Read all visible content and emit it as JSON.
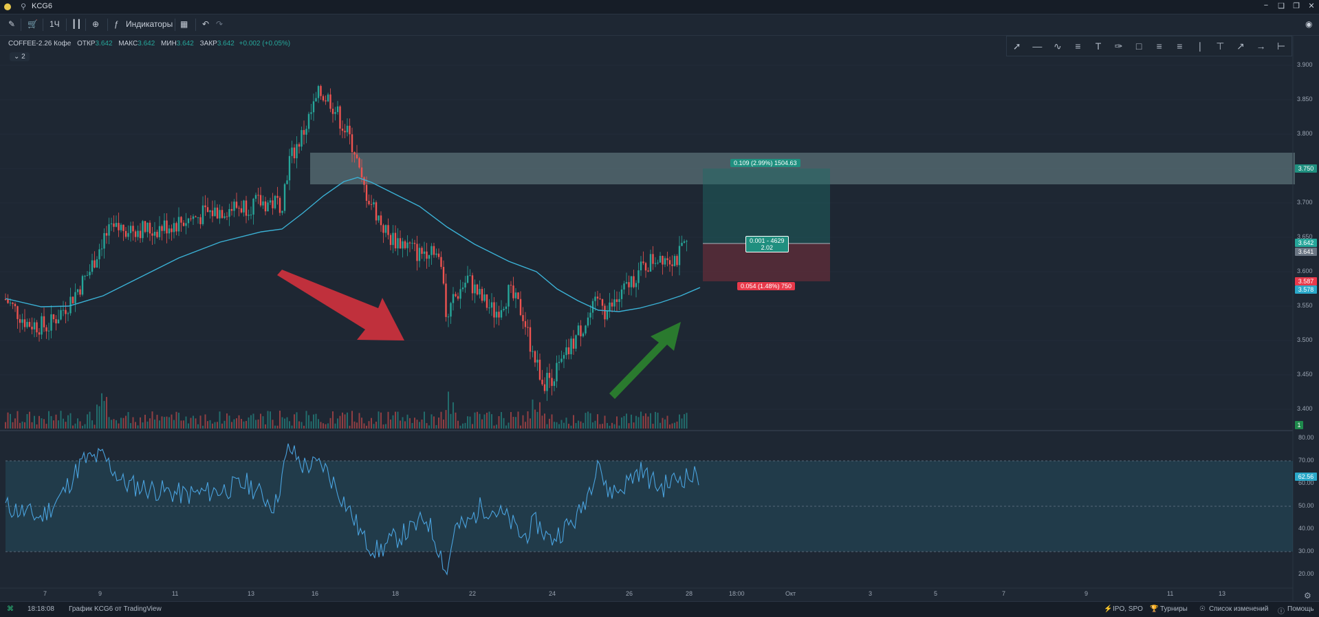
{
  "window": {
    "symbol": "KCG6",
    "buttons": [
      "−",
      "❑",
      "❐",
      "✕"
    ]
  },
  "toolbar": {
    "interval": "1Ч",
    "indicators_label": "Индикаторы"
  },
  "legend": {
    "name": "COFFEE-2.26 Кофе",
    "open_label": "ОТКР",
    "open": "3.642",
    "high_label": "МАКС",
    "high": "3.642",
    "low_label": "МИН",
    "low": "3.642",
    "close_label": "ЗАКР",
    "close": "3.642",
    "change": "+0.002 (+0.05%)",
    "collapsed_count": "2"
  },
  "position_tool": {
    "target_label": "0.109 (2.99%) 1504.63",
    "entry_label_1": "0.001 - 4629",
    "entry_label_2": "2.02",
    "stop_label": "0.054 (1.48%) 750"
  },
  "price_axis": {
    "ticks": [
      "3.900",
      "3.850",
      "3.800",
      "3.750",
      "3.700",
      "3.650",
      "3.600",
      "3.550",
      "3.500",
      "3.450",
      "3.400"
    ],
    "tags": [
      {
        "text": "3.750",
        "color": "#1f8f7f"
      },
      {
        "text": "3.642",
        "color": "#26a69a"
      },
      {
        "text": "3.641",
        "color": "#6b7684"
      },
      {
        "text": "3.587",
        "color": "#e8394a"
      },
      {
        "text": "3.578",
        "color": "#2aa8c9"
      },
      {
        "text": "1",
        "color": "#1f8a4c"
      }
    ]
  },
  "rsi_axis": {
    "ticks": [
      "80.00",
      "70.00",
      "60.00",
      "50.00",
      "40.00",
      "30.00",
      "20.00"
    ],
    "current": "62.56"
  },
  "time_axis": {
    "ticks": [
      "7",
      "9",
      "11",
      "13",
      "16",
      "18",
      "22",
      "24",
      "26",
      "28",
      "18:00",
      "Окт",
      "3",
      "5",
      "7",
      "9",
      "11",
      "13"
    ]
  },
  "status": {
    "time": "18:18:08",
    "credit": "График KCG6 от TradingView",
    "ipo": "IPO, SPO",
    "tournaments": "Турниры",
    "changelog": "Список изменений",
    "help": "Помощь"
  },
  "colors": {
    "up": "#26a69a",
    "down": "#ef5350",
    "ma": "#3bb2d6",
    "rsi": "#4aa3df",
    "zone": "#6f8a8e"
  },
  "icons": [
    "pencil-icon",
    "cart-icon",
    "candles-icon",
    "plus-circle-icon",
    "fx-icon",
    "layout-icon",
    "undo-icon",
    "redo-icon",
    "camera-icon",
    "wifi-icon"
  ]
}
